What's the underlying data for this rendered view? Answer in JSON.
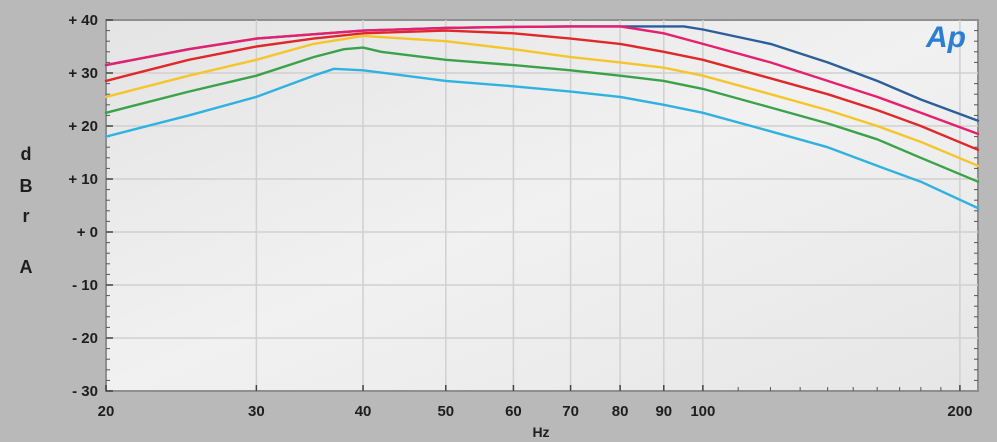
{
  "chart_data": {
    "type": "line",
    "xlabel": "Hz",
    "ylabel": "dBrA",
    "x_scale": "log",
    "xlim": [
      20,
      210
    ],
    "ylim": [
      -30,
      40
    ],
    "grid": true,
    "x_ticks": [
      20,
      30,
      40,
      50,
      60,
      70,
      80,
      90,
      100,
      200
    ],
    "y_ticks": [
      {
        "value": 40,
        "label": "+ 40"
      },
      {
        "value": 30,
        "label": "+ 30"
      },
      {
        "value": 20,
        "label": "+ 20"
      },
      {
        "value": 10,
        "label": "+ 10"
      },
      {
        "value": 0,
        "label": "+ 0"
      },
      {
        "value": -10,
        "label": "- 10"
      },
      {
        "value": -20,
        "label": "- 20"
      },
      {
        "value": -30,
        "label": "- 30"
      }
    ],
    "logo": "Ap",
    "series": [
      {
        "color": "#2b5f9a",
        "points": [
          [
            20,
            31.5
          ],
          [
            25,
            34.5
          ],
          [
            30,
            36.5
          ],
          [
            40,
            38
          ],
          [
            50,
            38.5
          ],
          [
            60,
            38.7
          ],
          [
            70,
            38.8
          ],
          [
            80,
            38.8
          ],
          [
            90,
            38.8
          ],
          [
            95,
            38.8
          ],
          [
            100,
            38.2
          ],
          [
            120,
            35.5
          ],
          [
            140,
            32
          ],
          [
            160,
            28.5
          ],
          [
            180,
            25
          ],
          [
            210,
            21
          ]
        ]
      },
      {
        "color": "#e6206e",
        "points": [
          [
            20,
            31.5
          ],
          [
            25,
            34.5
          ],
          [
            30,
            36.5
          ],
          [
            40,
            38
          ],
          [
            50,
            38.5
          ],
          [
            60,
            38.7
          ],
          [
            70,
            38.8
          ],
          [
            80,
            38.8
          ],
          [
            90,
            37.5
          ],
          [
            100,
            35.5
          ],
          [
            120,
            32
          ],
          [
            140,
            28.5
          ],
          [
            160,
            25.5
          ],
          [
            180,
            22.5
          ],
          [
            210,
            18.5
          ]
        ]
      },
      {
        "color": "#e0282a",
        "points": [
          [
            20,
            28.5
          ],
          [
            25,
            32.5
          ],
          [
            30,
            35
          ],
          [
            35,
            36.5
          ],
          [
            40,
            37.5
          ],
          [
            50,
            38
          ],
          [
            60,
            37.5
          ],
          [
            70,
            36.5
          ],
          [
            80,
            35.5
          ],
          [
            90,
            34
          ],
          [
            100,
            32.5
          ],
          [
            120,
            29
          ],
          [
            140,
            26
          ],
          [
            160,
            23
          ],
          [
            180,
            20
          ],
          [
            210,
            15.5
          ]
        ]
      },
      {
        "color": "#f5c52a",
        "points": [
          [
            20,
            25.5
          ],
          [
            25,
            29.5
          ],
          [
            30,
            32.5
          ],
          [
            35,
            35.5
          ],
          [
            40,
            37
          ],
          [
            50,
            36
          ],
          [
            60,
            34.5
          ],
          [
            70,
            33
          ],
          [
            80,
            32
          ],
          [
            90,
            31
          ],
          [
            100,
            29.5
          ],
          [
            120,
            26
          ],
          [
            140,
            23
          ],
          [
            160,
            20
          ],
          [
            180,
            17
          ],
          [
            210,
            12.5
          ]
        ]
      },
      {
        "color": "#3aa34a",
        "points": [
          [
            20,
            22.5
          ],
          [
            25,
            26.5
          ],
          [
            30,
            29.5
          ],
          [
            35,
            33
          ],
          [
            38,
            34.5
          ],
          [
            40,
            34.8
          ],
          [
            42,
            34
          ],
          [
            50,
            32.5
          ],
          [
            60,
            31.5
          ],
          [
            70,
            30.5
          ],
          [
            80,
            29.5
          ],
          [
            90,
            28.5
          ],
          [
            100,
            27
          ],
          [
            120,
            23.5
          ],
          [
            140,
            20.5
          ],
          [
            160,
            17.5
          ],
          [
            180,
            14
          ],
          [
            210,
            9.5
          ]
        ]
      },
      {
        "color": "#2fb2e0",
        "points": [
          [
            20,
            18
          ],
          [
            25,
            22
          ],
          [
            30,
            25.5
          ],
          [
            35,
            29.5
          ],
          [
            37,
            30.8
          ],
          [
            40,
            30.5
          ],
          [
            50,
            28.5
          ],
          [
            60,
            27.5
          ],
          [
            70,
            26.5
          ],
          [
            80,
            25.5
          ],
          [
            90,
            24
          ],
          [
            100,
            22.5
          ],
          [
            120,
            19
          ],
          [
            140,
            16
          ],
          [
            160,
            12.5
          ],
          [
            180,
            9.5
          ],
          [
            210,
            4.5
          ]
        ]
      }
    ]
  }
}
